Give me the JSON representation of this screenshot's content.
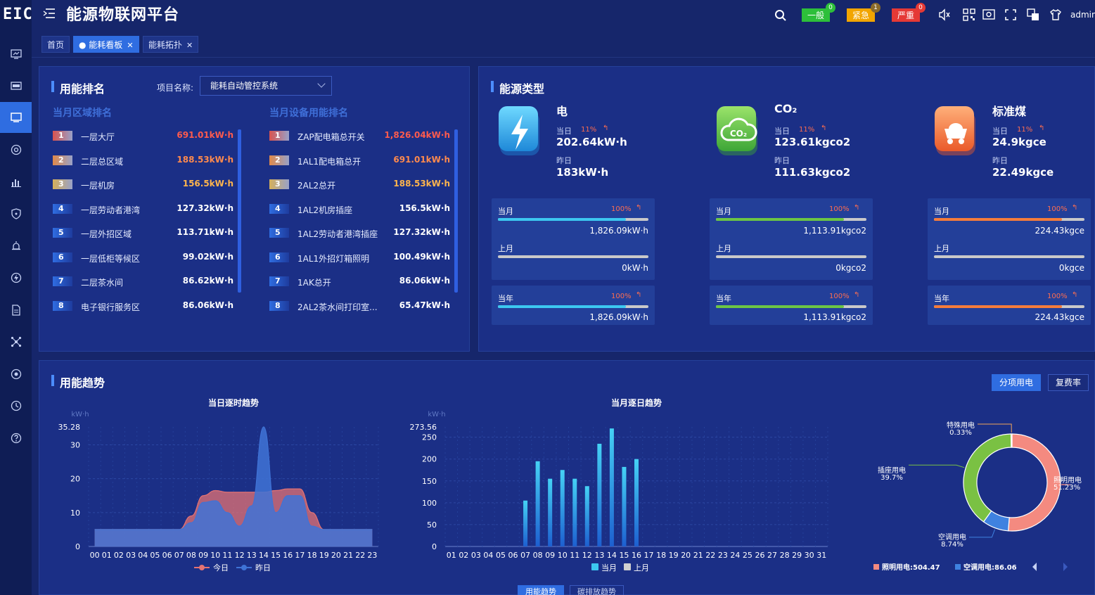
{
  "app": {
    "logo": "EIC",
    "title": "能源物联网平台",
    "user": "admin"
  },
  "alarms": [
    {
      "label": "一般",
      "count": "0",
      "color": "#2dbf3a",
      "badge": "#2dbf3a"
    },
    {
      "label": "紧急",
      "count": "1",
      "color": "#f2a500",
      "badge": "#8a6a2a"
    },
    {
      "label": "严重",
      "count": "0",
      "color": "#e53935",
      "badge": "#e53935"
    }
  ],
  "tabs": [
    {
      "label": "首页",
      "closable": false,
      "active": false
    },
    {
      "label": "能耗看板",
      "closable": true,
      "active": true
    },
    {
      "label": "能耗拓扑",
      "closable": true,
      "active": false
    }
  ],
  "ranking": {
    "title": "用能排名",
    "project_label": "项目名称:",
    "project_value": "能耗自动管控系统",
    "area_title": "当月区域排名",
    "device_title": "当月设备用能排名",
    "areas": [
      {
        "rank": "1",
        "name": "一层大厅",
        "value": "691.01kW·h"
      },
      {
        "rank": "2",
        "name": "二层总区域",
        "value": "188.53kW·h"
      },
      {
        "rank": "3",
        "name": "一层机房",
        "value": "156.5kW·h"
      },
      {
        "rank": "4",
        "name": "一层劳动者港湾",
        "value": "127.32kW·h"
      },
      {
        "rank": "5",
        "name": "一层外招区域",
        "value": "113.71kW·h"
      },
      {
        "rank": "6",
        "name": "一层低柜等候区",
        "value": "99.02kW·h"
      },
      {
        "rank": "7",
        "name": "二层茶水间",
        "value": "86.62kW·h"
      },
      {
        "rank": "8",
        "name": "电子银行服务区",
        "value": "86.06kW·h"
      }
    ],
    "devices": [
      {
        "rank": "1",
        "name": "ZAP配电箱总开关",
        "value": "1,826.04kW·h"
      },
      {
        "rank": "2",
        "name": "1AL1配电箱总开",
        "value": "691.01kW·h"
      },
      {
        "rank": "3",
        "name": "2AL2总开",
        "value": "188.53kW·h"
      },
      {
        "rank": "4",
        "name": "1AL2机房插座",
        "value": "156.5kW·h"
      },
      {
        "rank": "5",
        "name": "1AL2劳动者港湾插座",
        "value": "127.32kW·h"
      },
      {
        "rank": "6",
        "name": "1AL1外招灯箱照明",
        "value": "100.49kW·h"
      },
      {
        "rank": "7",
        "name": "1AK总开",
        "value": "86.06kW·h"
      },
      {
        "rank": "8",
        "name": "2AL2茶水间打印室...",
        "value": "65.47kW·h"
      }
    ],
    "rank_colors": [
      "#d9534f",
      "#e0894a",
      "#d6b05a"
    ]
  },
  "energy": {
    "title": "能源类型",
    "day_label": "当日",
    "yesterday_label": "昨日",
    "month_label": "当月",
    "lastmonth_label": "上月",
    "year_label": "当年",
    "types": [
      {
        "name": "电",
        "day_pct": "11%",
        "day_value": "202.64kW·h",
        "yesterday_value": "183kW·h",
        "month_pct": "100%",
        "month_value": "1,826.09kW·h",
        "month_fill": 0.85,
        "lastmonth_value": "0kW·h",
        "lastmonth_fill": 0,
        "year_pct": "100%",
        "year_value": "1,826.09kW·h",
        "year_fill": 0.85,
        "color": "#3cc8f0",
        "icon": "lightning-icon"
      },
      {
        "name": "CO₂",
        "day_pct": "11%",
        "day_value": "123.61kgco2",
        "yesterday_value": "111.63kgco2",
        "month_pct": "100%",
        "month_value": "1,113.91kgco2",
        "month_fill": 0.85,
        "lastmonth_value": "0kgco2",
        "lastmonth_fill": 0,
        "year_pct": "100%",
        "year_value": "1,113.91kgco2",
        "year_fill": 0.85,
        "color": "#6cc644",
        "icon": "co2-cloud-icon"
      },
      {
        "name": "标准煤",
        "day_pct": "11%",
        "day_value": "24.9kgce",
        "yesterday_value": "22.49kgce",
        "month_pct": "100%",
        "month_value": "224.43kgce",
        "month_fill": 0.85,
        "lastmonth_value": "0kgce",
        "lastmonth_fill": 0,
        "year_pct": "100%",
        "year_value": "224.43kgce",
        "year_fill": 0.85,
        "color": "#f57c3b",
        "icon": "coal-cart-icon"
      }
    ]
  },
  "trend": {
    "title": "用能趋势",
    "toggle": [
      "分项用电",
      "复费率"
    ],
    "bottom_tabs": [
      "用能趋势",
      "碳排放趋势"
    ]
  },
  "chart_data": [
    {
      "type": "area",
      "title": "当日逐时趋势",
      "ylabel": "kW·h",
      "ymax_label": "35.28",
      "ylim": [
        0,
        35.28
      ],
      "yticks": [
        0,
        10,
        20,
        30
      ],
      "categories": [
        "00",
        "01",
        "02",
        "03",
        "04",
        "05",
        "06",
        "07",
        "08",
        "09",
        "10",
        "11",
        "12",
        "13",
        "14",
        "15",
        "16",
        "17",
        "18",
        "19",
        "20",
        "21",
        "22",
        "23"
      ],
      "series": [
        {
          "name": "今日",
          "color": "#e57373",
          "values": [
            5,
            5,
            5,
            5,
            5,
            5,
            5,
            5,
            9,
            15,
            16.5,
            16,
            16,
            16,
            16,
            16.5,
            17,
            17,
            10,
            5,
            5,
            5,
            5,
            5
          ]
        },
        {
          "name": "昨日",
          "color": "#3f73d6",
          "values": [
            5,
            5,
            5,
            5,
            5,
            5,
            5,
            5,
            7,
            13,
            13.5,
            10,
            6,
            12,
            35.28,
            10,
            15,
            15,
            6,
            5,
            5,
            5,
            5,
            5
          ]
        }
      ]
    },
    {
      "type": "bar",
      "title": "当月逐日趋势",
      "ylabel": "kW·h",
      "ymax_label": "273.56",
      "ylim": [
        0,
        273.56
      ],
      "yticks": [
        0,
        50,
        100,
        150,
        200,
        250
      ],
      "categories": [
        "01",
        "02",
        "03",
        "04",
        "05",
        "06",
        "07",
        "08",
        "09",
        "10",
        "11",
        "12",
        "13",
        "14",
        "15",
        "16",
        "17",
        "18",
        "19",
        "20",
        "21",
        "22",
        "23",
        "24",
        "25",
        "26",
        "27",
        "28",
        "29",
        "30",
        "31"
      ],
      "series": [
        {
          "name": "当月",
          "color": "#3cc8f0",
          "values": [
            0,
            0,
            0,
            0,
            0,
            0,
            105,
            195,
            155,
            175,
            155,
            138,
            235,
            270,
            182,
            200,
            0,
            0,
            0,
            0,
            0,
            0,
            0,
            0,
            0,
            0,
            0,
            0,
            0,
            0,
            0
          ]
        },
        {
          "name": "上月",
          "color": "#d0d0d0",
          "values": [
            0,
            0,
            0,
            0,
            0,
            0,
            0,
            0,
            0,
            0,
            0,
            0,
            0,
            0,
            0,
            0,
            0,
            0,
            0,
            0,
            0,
            0,
            0,
            0,
            0,
            0,
            0,
            0,
            0,
            0,
            0
          ]
        }
      ]
    },
    {
      "type": "pie",
      "slices": [
        {
          "name": "照明用电",
          "pct": "51.23%",
          "value": 51.23,
          "color": "#f48a80"
        },
        {
          "name": "空调用电",
          "pct": "8.74%",
          "value": 8.74,
          "color": "#3f82e0"
        },
        {
          "name": "插座用电",
          "pct": "39.7%",
          "value": 39.7,
          "color": "#7ac143"
        },
        {
          "name": "特殊用电",
          "pct": "0.33%",
          "value": 0.33,
          "color": "#f2a65a"
        }
      ],
      "legend": [
        {
          "label": "照明用电:504.47",
          "color": "#f48a80"
        },
        {
          "label": "空调用电:86.06",
          "color": "#3f82e0"
        }
      ]
    }
  ]
}
